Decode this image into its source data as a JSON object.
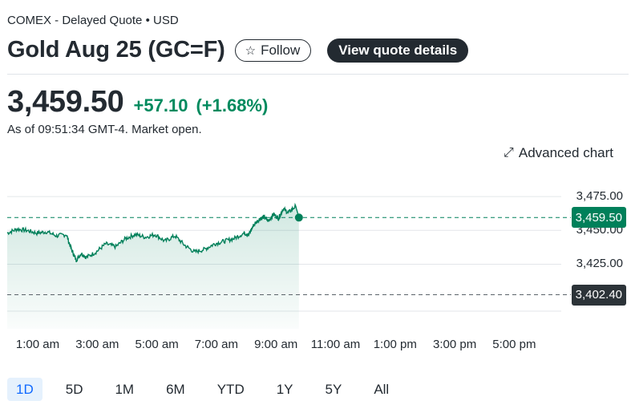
{
  "header": {
    "exchange": "COMEX - Delayed Quote • USD",
    "title": "Gold Aug 25 (GC=F)",
    "follow_label": "Follow",
    "view_quote_label": "View quote details"
  },
  "quote": {
    "price": "3,459.50",
    "change": "+57.10",
    "change_pct": "(+1.68%)",
    "as_of": "As of 09:51:34 GMT-4. Market open."
  },
  "chart_toolbar": {
    "advanced_chart_label": "Advanced chart"
  },
  "chart_data": {
    "type": "area",
    "y_ticks": [
      "3,475.00",
      "3,450.00",
      "3,425.00"
    ],
    "x_ticks": [
      "1:00 am",
      "3:00 am",
      "5:00 am",
      "7:00 am",
      "9:00 am",
      "11:00 am",
      "1:00 pm",
      "3:00 pm",
      "5:00 pm"
    ],
    "ylim": [
      3395,
      3484
    ],
    "current_price_label": "3,459.50",
    "previous_close_label": "3,402.40",
    "current_price": 3459.5,
    "previous_close": 3402.4,
    "series_time_hours": [
      0,
      0.33,
      0.67,
      1.0,
      1.33,
      1.67,
      2.0,
      2.17,
      2.33,
      2.5,
      2.67,
      3.0,
      3.33,
      3.67,
      4.0,
      4.33,
      4.67,
      5.0,
      5.33,
      5.67,
      6.0,
      6.33,
      6.67,
      7.0,
      7.33,
      7.67,
      8.0,
      8.17,
      8.33,
      8.5,
      8.67,
      8.83,
      9.0,
      9.17,
      9.33,
      9.5,
      9.75,
      9.86
    ],
    "series_values": [
      3448,
      3451,
      3450,
      3448,
      3449,
      3446,
      3447,
      3436,
      3428,
      3433,
      3430,
      3434,
      3440,
      3438,
      3444,
      3447,
      3445,
      3447,
      3442,
      3446,
      3439,
      3434,
      3436,
      3440,
      3442,
      3444,
      3448,
      3447,
      3454,
      3458,
      3460,
      3457,
      3462,
      3459,
      3466,
      3463,
      3468,
      3459.5
    ],
    "accent_color": "#00805a",
    "prev_close_color": "#2c3338"
  },
  "ranges": {
    "items": [
      "1D",
      "5D",
      "1M",
      "6M",
      "YTD",
      "1Y",
      "5Y",
      "All"
    ],
    "active": "1D"
  }
}
